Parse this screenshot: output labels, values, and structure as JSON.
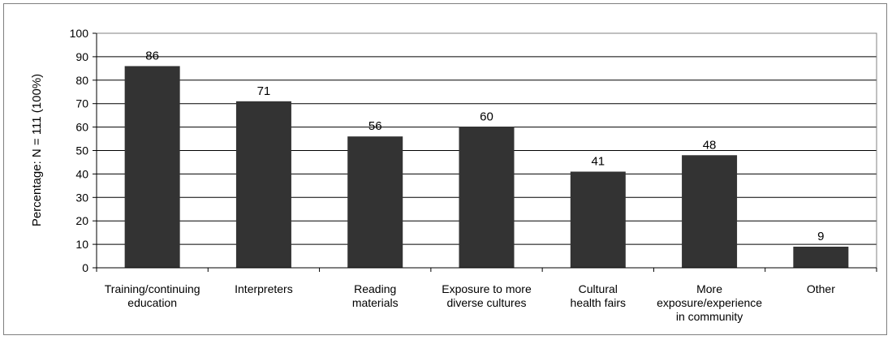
{
  "chart_data": {
    "type": "bar",
    "title": "",
    "xlabel": "",
    "ylabel": "Percentage: N = 111 (100%)",
    "ylim": [
      0,
      100
    ],
    "yticks": [
      0,
      10,
      20,
      30,
      40,
      50,
      60,
      70,
      80,
      90,
      100
    ],
    "grid": true,
    "categories": [
      [
        "Training/continuing",
        "education"
      ],
      [
        "Interpreters"
      ],
      [
        "Reading",
        "materials"
      ],
      [
        "Exposure to more",
        "diverse cultures"
      ],
      [
        "Cultural",
        "health fairs"
      ],
      [
        "More",
        "exposure/experience",
        "in community"
      ],
      [
        "Other"
      ]
    ],
    "values": [
      86,
      71,
      56,
      60,
      41,
      48,
      9
    ],
    "bar_color": "#333333",
    "plot_area_border": "#808080"
  }
}
